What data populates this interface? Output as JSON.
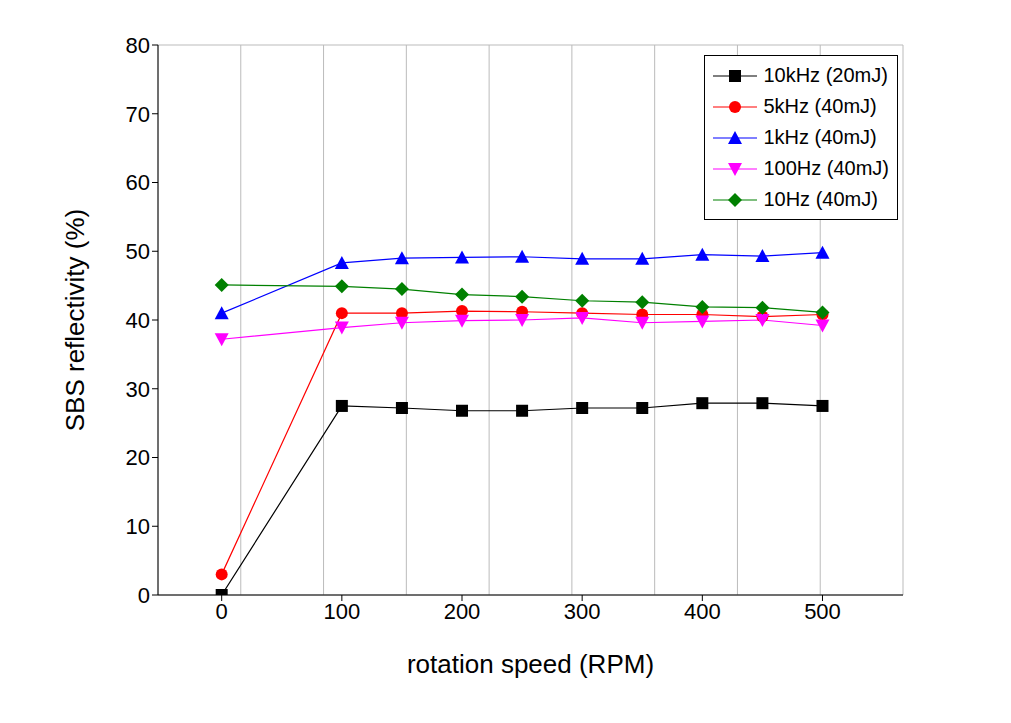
{
  "chart_data": {
    "type": "line",
    "x_label": "rotation speed (RPM)",
    "y_label": "SBS reflectivity (%)",
    "x": [
      0,
      100,
      150,
      200,
      250,
      300,
      350,
      400,
      450,
      500
    ],
    "xlim": [
      -53,
      567
    ],
    "xticks": [
      0,
      100,
      200,
      300,
      400,
      500
    ],
    "ylim": [
      0,
      80
    ],
    "yticks": [
      0,
      10,
      20,
      30,
      40,
      50,
      60,
      70,
      80
    ],
    "grid": true,
    "legend": "top-right",
    "series": [
      {
        "name": "10kHz (20mJ)",
        "color": "#000000",
        "marker": "square",
        "values": [
          0,
          27.5,
          27.2,
          26.8,
          26.8,
          27.2,
          27.2,
          27.9,
          27.9,
          27.5
        ]
      },
      {
        "name": "5kHz (40mJ)",
        "color": "#ff0000",
        "marker": "circle",
        "values": [
          3,
          41,
          41,
          41.3,
          41.2,
          41,
          40.8,
          40.8,
          40.5,
          40.8
        ]
      },
      {
        "name": "1kHz (40mJ)",
        "color": "#0000ff",
        "marker": "triangle-up",
        "values": [
          41,
          48.3,
          49,
          49.1,
          49.2,
          48.9,
          48.9,
          49.5,
          49.3,
          49.8
        ]
      },
      {
        "name": "100Hz (40mJ)",
        "color": "#ff00ff",
        "marker": "triangle-down",
        "values": [
          37.2,
          38.9,
          39.6,
          39.9,
          40,
          40.3,
          39.6,
          39.8,
          40,
          39.2
        ]
      },
      {
        "name": "10Hz (40mJ)",
        "color": "#008000",
        "marker": "diamond",
        "values": [
          45.1,
          44.9,
          44.5,
          43.7,
          43.4,
          42.8,
          42.6,
          41.9,
          41.8,
          41.1
        ]
      }
    ]
  }
}
